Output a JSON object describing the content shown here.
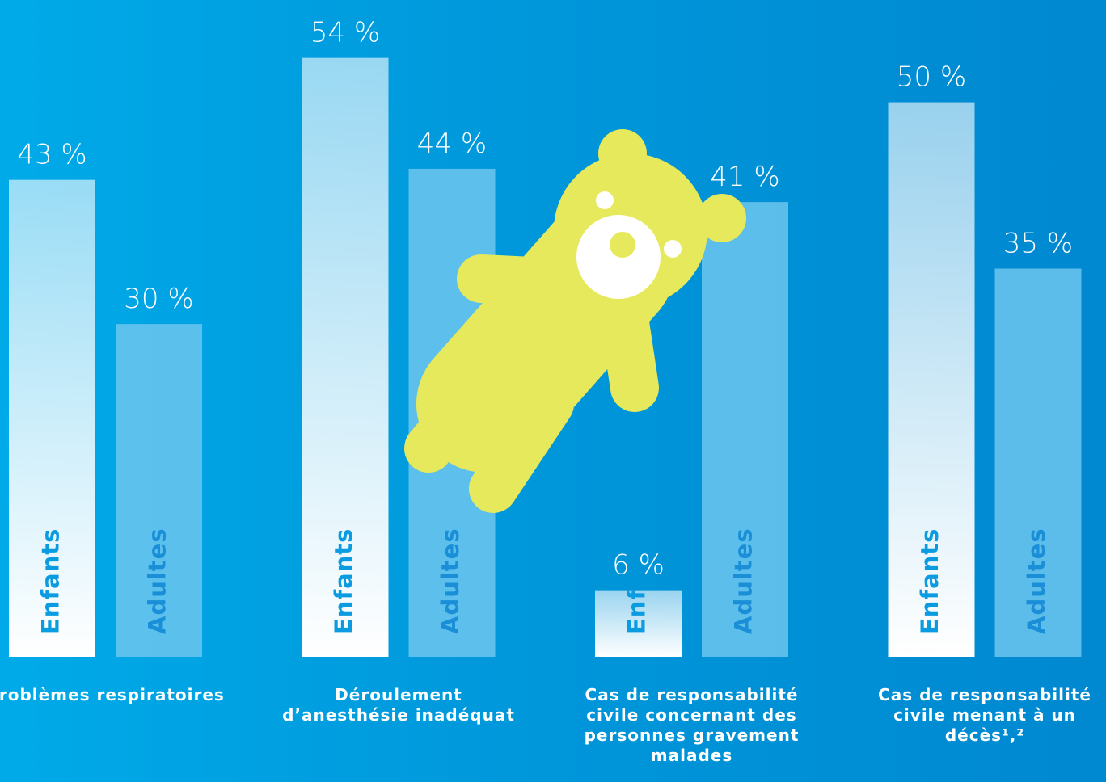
{
  "chart_data": {
    "type": "bar",
    "categories": [
      "Problèmes respiratoires",
      "Déroulement d’anesthésie inadéquat",
      "Cas de responsabilité civile concernant des personnes gravement malades",
      "Cas de responsabilité civile menant à un décès¹,²"
    ],
    "series": [
      {
        "name": "Enfants",
        "color": "#ffffff",
        "values": [
          43,
          54,
          6,
          50
        ],
        "value_labels": [
          "43 %",
          "54 %",
          "6 %",
          "50 %"
        ]
      },
      {
        "name": "Adultes",
        "color": "#6cc6ee",
        "values": [
          30,
          44,
          41,
          35
        ],
        "value_labels": [
          "30 %",
          "44 %",
          "41 %",
          "35 %"
        ]
      }
    ],
    "ylim": [
      0,
      59
    ]
  }
}
